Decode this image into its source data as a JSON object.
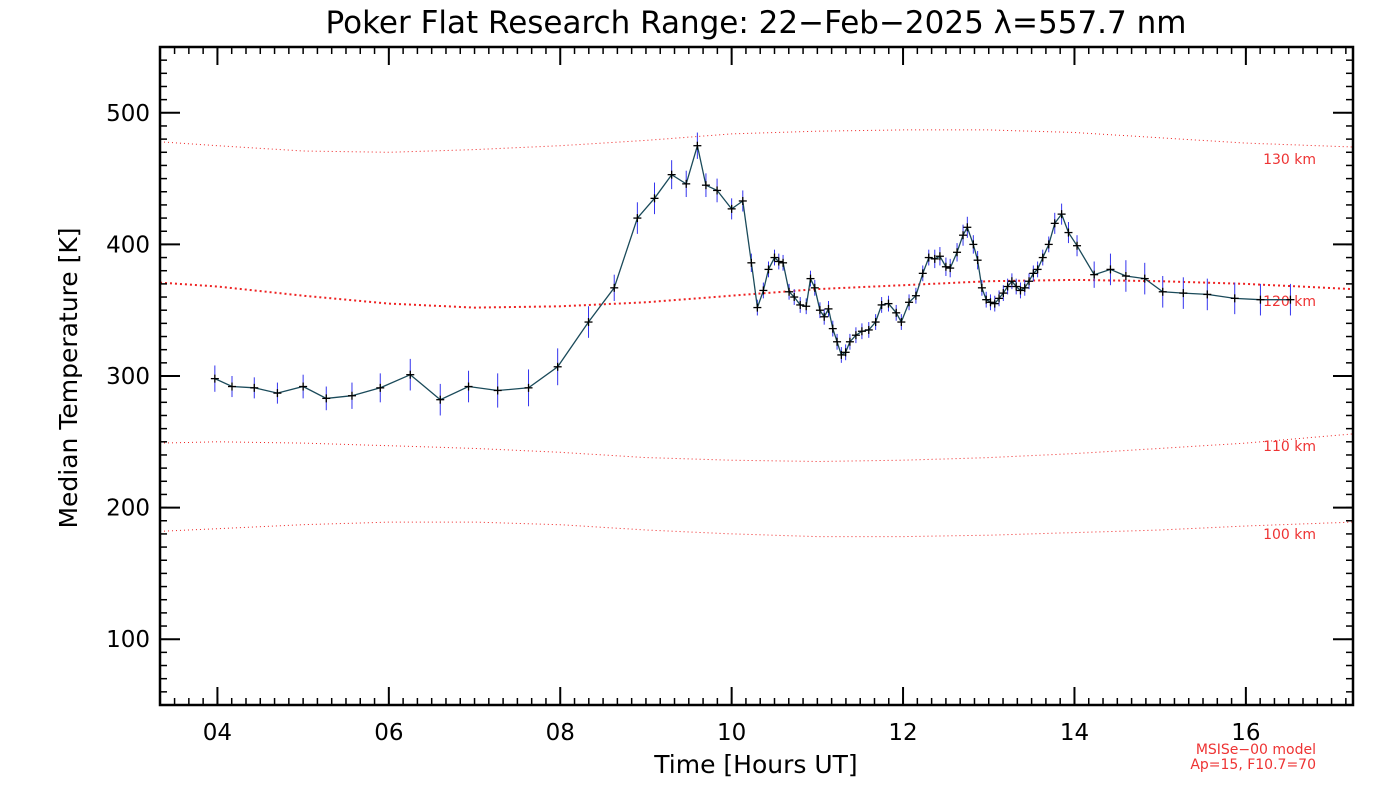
{
  "chart_data": {
    "type": "line",
    "title": "Poker Flat Research Range: 22−Feb−2025 λ=557.7 nm",
    "xlabel": "Time [Hours UT]",
    "ylabel": "Median Temperature [K]",
    "xlim": [
      3.33,
      17.25
    ],
    "ylim": [
      50,
      550
    ],
    "x_ticks": [
      4,
      6,
      8,
      10,
      12,
      14,
      16
    ],
    "x_tick_labels": [
      "04",
      "06",
      "08",
      "10",
      "12",
      "14",
      "16"
    ],
    "y_ticks": [
      100,
      200,
      300,
      400,
      500
    ],
    "y_tick_labels": [
      "100",
      "200",
      "300",
      "400",
      "500"
    ],
    "grid": false,
    "colors": {
      "data_line": "#1a4a5a",
      "error_bar": "#3333ee",
      "marker": "#000000",
      "model": "#ee2222"
    },
    "series": [
      {
        "x": [
          3.97,
          4.17,
          4.43,
          4.7,
          5.0,
          5.27,
          5.57,
          5.9,
          6.25,
          6.6,
          6.93,
          7.27,
          7.63,
          7.97,
          8.33,
          8.63,
          8.9,
          9.1,
          9.3,
          9.47,
          9.6,
          9.7,
          9.83,
          10.0,
          10.13,
          10.23,
          10.3,
          10.37,
          10.43,
          10.5,
          10.55,
          10.6,
          10.67,
          10.73,
          10.8,
          10.87,
          10.92,
          10.97,
          11.03,
          11.08,
          11.13,
          11.18,
          11.23,
          11.28,
          11.33,
          11.38,
          11.45,
          11.52,
          11.6,
          11.68,
          11.75,
          11.83,
          11.92,
          11.98,
          12.07,
          12.15,
          12.23,
          12.3,
          12.37,
          12.43,
          12.5,
          12.55,
          12.63,
          12.7,
          12.75,
          12.82,
          12.87,
          12.92,
          12.97,
          13.02,
          13.07,
          13.12,
          13.17,
          13.22,
          13.27,
          13.32,
          13.37,
          13.42,
          13.47,
          13.52,
          13.57,
          13.63,
          13.7,
          13.77,
          13.85,
          13.93,
          14.03,
          14.23,
          14.42,
          14.6,
          14.82,
          15.03,
          15.27,
          15.55,
          15.87,
          16.17,
          16.52
        ],
        "y": [
          298,
          292,
          291,
          287,
          292,
          283,
          285,
          291,
          301,
          282,
          292,
          289,
          291,
          307,
          341,
          367,
          420,
          435,
          453,
          446,
          475,
          445,
          441,
          427,
          433,
          386,
          352,
          365,
          381,
          390,
          387,
          386,
          364,
          360,
          354,
          353,
          374,
          367,
          350,
          345,
          351,
          336,
          326,
          316,
          318,
          326,
          331,
          334,
          335,
          341,
          354,
          355,
          348,
          341,
          356,
          361,
          378,
          390,
          389,
          391,
          383,
          382,
          394,
          407,
          413,
          400,
          388,
          367,
          358,
          356,
          355,
          359,
          363,
          368,
          372,
          368,
          365,
          367,
          372,
          378,
          381,
          390,
          400,
          416,
          423,
          409,
          399,
          377,
          381,
          376,
          374,
          364,
          363,
          362,
          359,
          358,
          358
        ],
        "err": [
          10,
          8,
          8,
          8,
          9,
          9,
          10,
          11,
          12,
          12,
          12,
          13,
          14,
          14,
          12,
          10,
          12,
          12,
          11,
          10,
          10,
          9,
          9,
          8,
          8,
          7,
          6,
          6,
          6,
          6,
          6,
          6,
          6,
          6,
          6,
          6,
          6,
          6,
          6,
          6,
          6,
          6,
          6,
          6,
          6,
          6,
          6,
          6,
          6,
          6,
          6,
          6,
          6,
          6,
          6,
          6,
          6,
          6,
          7,
          7,
          7,
          7,
          7,
          8,
          8,
          7,
          7,
          6,
          6,
          6,
          6,
          6,
          6,
          6,
          6,
          6,
          6,
          6,
          6,
          6,
          6,
          6,
          6,
          8,
          8,
          8,
          8,
          10,
          12,
          12,
          12,
          12,
          12,
          12,
          12,
          12,
          12
        ]
      }
    ],
    "model_curves": [
      {
        "label": "130 km",
        "x": [
          3.33,
          4,
          5,
          6,
          7,
          8,
          9,
          10,
          11,
          12,
          13,
          14,
          15,
          16,
          17.25
        ],
        "y": [
          478,
          475,
          471,
          470,
          472,
          475,
          479,
          484,
          486,
          487,
          487,
          485,
          481,
          477,
          474
        ],
        "style": "light"
      },
      {
        "label": "120 km",
        "x": [
          3.33,
          4,
          5,
          6,
          7,
          8,
          9,
          10,
          11,
          12,
          13,
          14,
          15,
          16,
          17.25
        ],
        "y": [
          371,
          368,
          361,
          355,
          352,
          353,
          356,
          361,
          366,
          369,
          372,
          373,
          372,
          370,
          366
        ],
        "style": "bold"
      },
      {
        "label": "110 km",
        "x": [
          3.33,
          4,
          5,
          6,
          7,
          8,
          9,
          10,
          11,
          12,
          13,
          14,
          15,
          16,
          17.25
        ],
        "y": [
          249,
          250,
          249,
          247,
          245,
          242,
          238,
          236,
          235,
          236,
          238,
          241,
          245,
          249,
          256
        ],
        "style": "light"
      },
      {
        "label": "100 km",
        "x": [
          3.33,
          4,
          5,
          6,
          7,
          8,
          9,
          10,
          11,
          12,
          13,
          14,
          15,
          16,
          17.25
        ],
        "y": [
          182,
          184,
          187,
          189,
          189,
          187,
          183,
          180,
          178,
          178,
          179,
          181,
          183,
          186,
          189
        ],
        "style": "light"
      }
    ],
    "model_note": [
      "MSISe−00 model",
      "Ap=15, F10.7=70"
    ]
  }
}
